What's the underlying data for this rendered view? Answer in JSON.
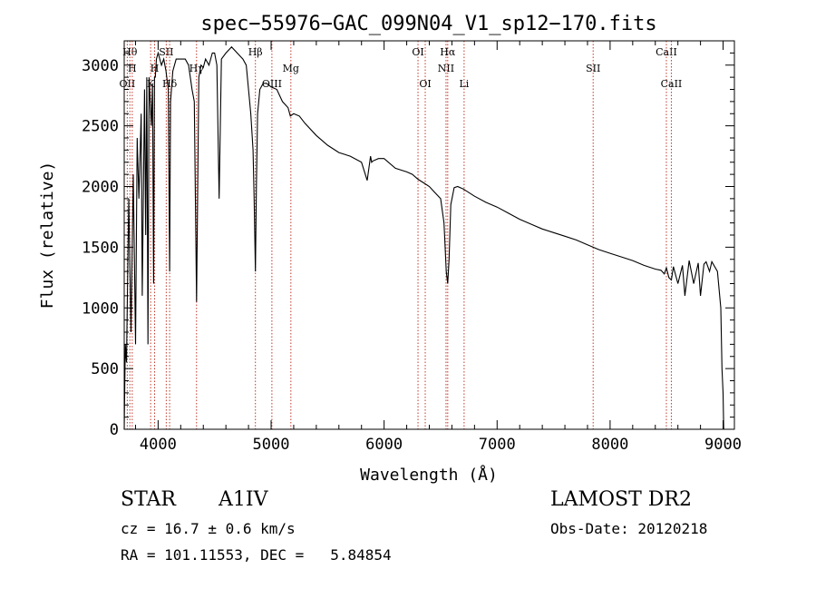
{
  "chart_data": {
    "type": "line",
    "title": "spec−55976−GAC_099N04_V1_sp12−170.fits",
    "xlabel": "Wavelength (Å)",
    "ylabel": "Flux (relative)",
    "xlim": [
      3700,
      9100
    ],
    "ylim": [
      0,
      3200
    ],
    "x_ticks": [
      "4000",
      "5000",
      "6000",
      "7000",
      "8000",
      "9000"
    ],
    "x_tick_values": [
      4000,
      5000,
      6000,
      7000,
      8000,
      9000
    ],
    "y_ticks": [
      "0",
      "500",
      "1000",
      "1500",
      "2000",
      "2500",
      "3000"
    ],
    "y_tick_values": [
      0,
      500,
      1000,
      1500,
      2000,
      2500,
      3000
    ],
    "grid": false,
    "series": [
      {
        "x": [
          3700,
          3710,
          3720,
          3740,
          3760,
          3780,
          3800,
          3815,
          3830,
          3850,
          3860,
          3880,
          3890,
          3900,
          3910,
          3920,
          3940,
          3950,
          3960,
          3968,
          3975,
          3985,
          4000,
          4030,
          4050,
          4070,
          4090,
          4102,
          4110,
          4130,
          4160,
          4200,
          4240,
          4270,
          4300,
          4320,
          4340,
          4360,
          4380,
          4400,
          4420,
          4450,
          4480,
          4500,
          4520,
          4540,
          4560,
          4600,
          4650,
          4700,
          4750,
          4780,
          4800,
          4820,
          4840,
          4850,
          4861,
          4870,
          4880,
          4900,
          4930,
          4960,
          5000,
          5050,
          5100,
          5150,
          5170,
          5200,
          5250,
          5300,
          5400,
          5500,
          5600,
          5700,
          5800,
          5850,
          5880,
          5890,
          5900,
          5950,
          6000,
          6100,
          6200,
          6250,
          6300,
          6350,
          6400,
          6450,
          6500,
          6530,
          6550,
          6563,
          6575,
          6590,
          6620,
          6650,
          6700,
          6800,
          6900,
          7000,
          7100,
          7200,
          7300,
          7400,
          7500,
          7600,
          7700,
          7800,
          7850,
          7900,
          8000,
          8100,
          8200,
          8300,
          8400,
          8450,
          8480,
          8498,
          8520,
          8542,
          8560,
          8600,
          8640,
          8662,
          8700,
          8740,
          8780,
          8800,
          8830,
          8850,
          8880,
          8900,
          8950,
          8980,
          8990,
          9000,
          9005
        ],
        "y": [
          0,
          700,
          550,
          1900,
          800,
          2100,
          700,
          2400,
          1900,
          2600,
          1100,
          2800,
          1600,
          2900,
          700,
          2900,
          2500,
          2850,
          1200,
          2900,
          2900,
          3050,
          3100,
          3000,
          3050,
          2950,
          2800,
          1300,
          2700,
          2950,
          3050,
          3050,
          3050,
          3000,
          2800,
          2700,
          1050,
          2900,
          3000,
          2980,
          3050,
          3000,
          3100,
          3100,
          3000,
          1900,
          3050,
          3100,
          3150,
          3100,
          3050,
          3000,
          2800,
          2600,
          2300,
          1900,
          1300,
          2000,
          2600,
          2800,
          2850,
          2850,
          2820,
          2800,
          2700,
          2650,
          2580,
          2600,
          2580,
          2520,
          2420,
          2340,
          2280,
          2250,
          2200,
          2050,
          2250,
          2200,
          2210,
          2230,
          2230,
          2150,
          2120,
          2100,
          2060,
          2030,
          2000,
          1950,
          1900,
          1700,
          1300,
          1200,
          1400,
          1850,
          1990,
          2000,
          1980,
          1920,
          1870,
          1830,
          1780,
          1730,
          1690,
          1650,
          1620,
          1590,
          1560,
          1520,
          1500,
          1480,
          1450,
          1420,
          1390,
          1350,
          1320,
          1310,
          1280,
          1330,
          1250,
          1230,
          1340,
          1200,
          1350,
          1100,
          1390,
          1200,
          1370,
          1100,
          1360,
          1380,
          1300,
          1380,
          1300,
          1000,
          500,
          300,
          0
        ]
      }
    ],
    "line_markers": [
      {
        "wave": 3727,
        "label": "OII",
        "row": 3
      },
      {
        "wave": 3750,
        "label": "Hθ",
        "row": 1
      },
      {
        "wave": 3771,
        "label": "H",
        "row": 2
      },
      {
        "wave": 3934,
        "label": "K",
        "row": 3
      },
      {
        "wave": 3969,
        "label": "H",
        "row": 2
      },
      {
        "wave": 4072,
        "label": "SII",
        "row": 1
      },
      {
        "wave": 4102,
        "label": "Hδ",
        "row": 3
      },
      {
        "wave": 4340,
        "label": "Hγ",
        "row": 2
      },
      {
        "wave": 4861,
        "label": "Hβ",
        "row": 1
      },
      {
        "wave": 5007,
        "label": "OIII",
        "row": 3
      },
      {
        "wave": 5175,
        "label": "Mg",
        "row": 2
      },
      {
        "wave": 6300,
        "label": "OI",
        "row": 1
      },
      {
        "wave": 6364,
        "label": "OI",
        "row": 3
      },
      {
        "wave": 6548,
        "label": "NII",
        "row": 2
      },
      {
        "wave": 6563,
        "label": "Hα",
        "row": 1
      },
      {
        "wave": 6708,
        "label": "Li",
        "row": 3
      },
      {
        "wave": 7850,
        "label": "SII",
        "row": 2
      },
      {
        "wave": 8498,
        "label": "CaII",
        "row": 1
      },
      {
        "wave": 8542,
        "label": "CaII",
        "row": 3
      }
    ]
  },
  "info": {
    "obj_class": "STAR",
    "subclass": "A1IV",
    "survey": "LAMOST DR2",
    "cz": "cz = 16.7 ± 0.6 km/s",
    "obs_date": "Obs-Date: 20120218",
    "radec": "RA = 101.11553, DEC =   5.84854"
  }
}
